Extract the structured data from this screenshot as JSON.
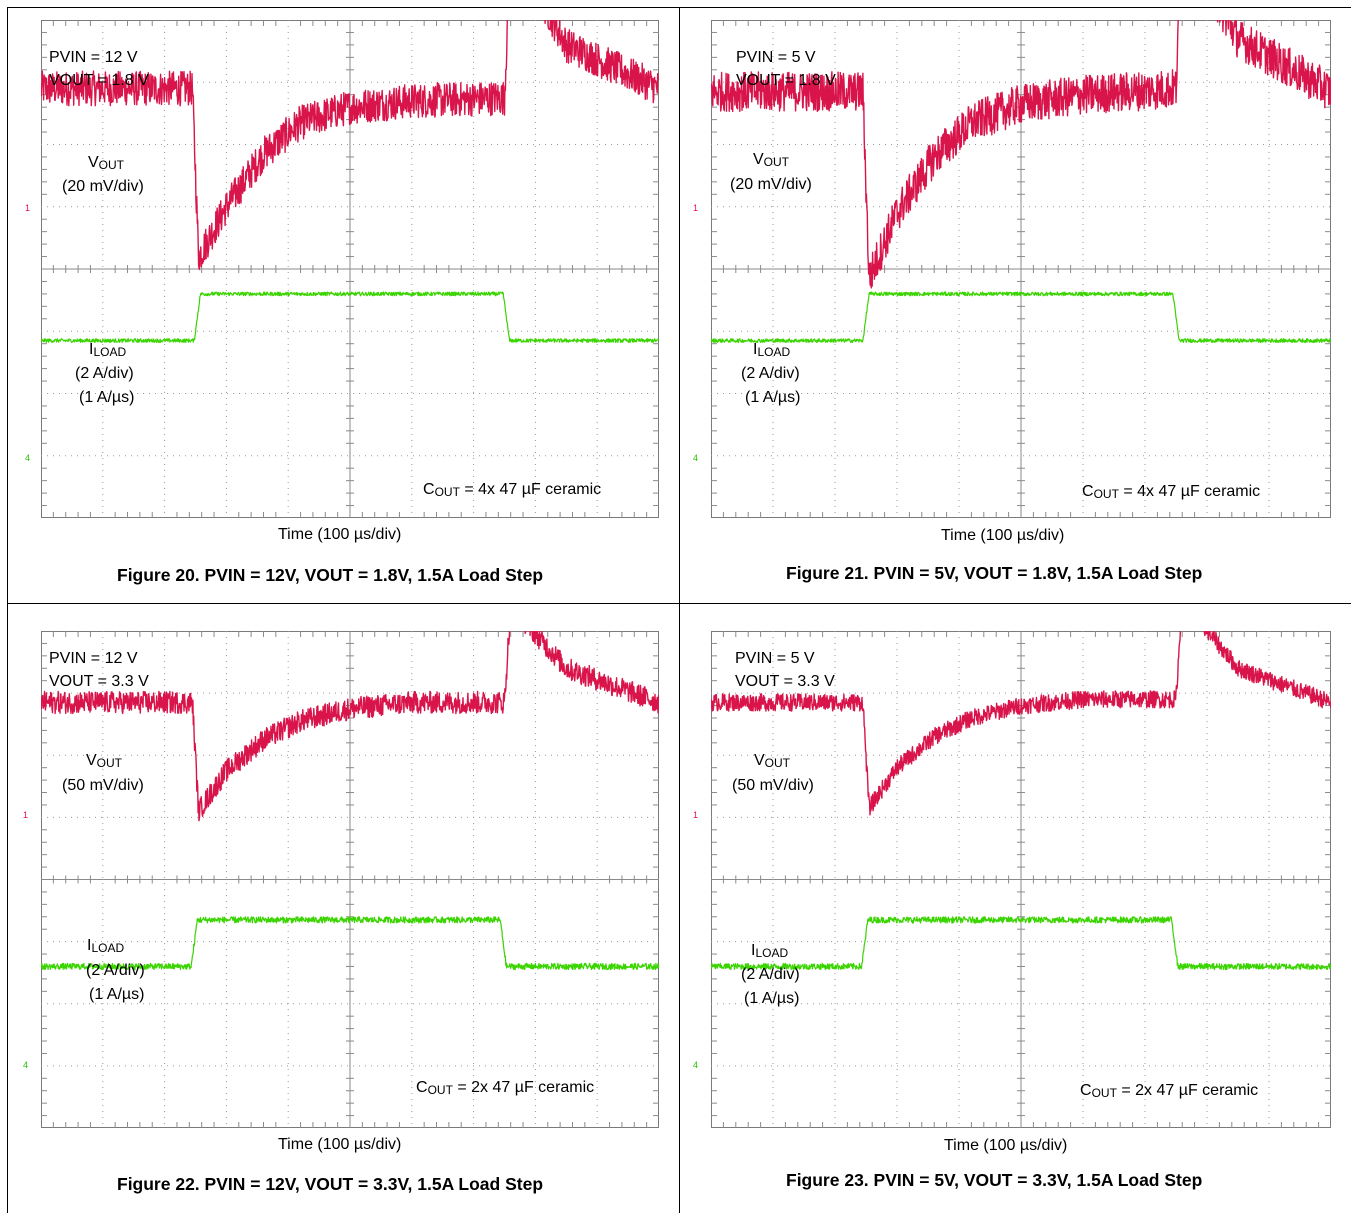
{
  "chart_data": [
    {
      "type": "line",
      "title": "Figure 20. PVIN = 12V, VOUT = 1.8V, 1.5A Load Step",
      "conditions": [
        "PVIN = 12 V",
        "VOUT = 1.8 V"
      ],
      "xlabel": "Time (100 µs/div)",
      "divisions": {
        "x": 10,
        "y": 8
      },
      "annotation": {
        "pre": "C",
        "sub": "OUT",
        "post": " = 4x 47 µF ceramic"
      },
      "channel_markers": [
        "1",
        "4"
      ],
      "series": [
        {
          "name_main": "V",
          "name_sub": "OUT",
          "scale": "(20 mV/div)",
          "color": "#d9144a",
          "x_div": [
            0,
            2.45,
            2.55,
            3.0,
            3.6,
            4.2,
            5.0,
            6.0,
            7.5,
            7.6,
            8.5,
            10.0
          ],
          "y_div": [
            6.9,
            6.9,
            4.2,
            5.0,
            5.85,
            6.35,
            6.6,
            6.7,
            6.75,
            9.2,
            7.6,
            6.9
          ],
          "noise_div": 0.28
        },
        {
          "name_main": "I",
          "name_sub": "LOAD",
          "scale": "(2 A/div)",
          "scale2": "(1 A/µs)",
          "color": "#3ad400",
          "x_div": [
            0,
            2.48,
            2.58,
            7.48,
            7.58,
            10.0
          ],
          "y_div": [
            2.85,
            2.85,
            3.6,
            3.6,
            2.85,
            2.85
          ],
          "noise_div": 0.03
        }
      ]
    },
    {
      "type": "line",
      "title": "Figure 21. PVIN = 5V, VOUT = 1.8V, 1.5A Load Step",
      "conditions": [
        "PVIN = 5 V",
        "VOUT = 1.8 V"
      ],
      "xlabel": "Time (100 µs/div)",
      "divisions": {
        "x": 10,
        "y": 8
      },
      "annotation": {
        "pre": "C",
        "sub": "OUT",
        "post": " = 4x 47 µF ceramic"
      },
      "channel_markers": [
        "1",
        "4"
      ],
      "series": [
        {
          "name_main": "V",
          "name_sub": "OUT",
          "scale": "(20 mV/div)",
          "color": "#d9144a",
          "x_div": [
            0,
            2.45,
            2.55,
            3.0,
            3.6,
            4.2,
            5.0,
            6.0,
            7.5,
            7.6,
            8.5,
            10.0
          ],
          "y_div": [
            6.85,
            6.85,
            3.85,
            4.9,
            5.8,
            6.35,
            6.65,
            6.8,
            6.9,
            9.25,
            7.7,
            6.85
          ],
          "noise_div": 0.32
        },
        {
          "name_main": "I",
          "name_sub": "LOAD",
          "scale": "(2 A/div)",
          "scale2": "(1 A/µs)",
          "color": "#3ad400",
          "x_div": [
            0,
            2.45,
            2.55,
            7.45,
            7.55,
            10.0
          ],
          "y_div": [
            2.85,
            2.85,
            3.6,
            3.6,
            2.85,
            2.85
          ],
          "noise_div": 0.03
        }
      ]
    },
    {
      "type": "line",
      "title": "Figure 22. PVIN = 12V, VOUT = 3.3V, 1.5A Load Step",
      "conditions": [
        "PVIN = 12 V",
        "VOUT = 3.3 V"
      ],
      "xlabel": "Time (100 µs/div)",
      "divisions": {
        "x": 10,
        "y": 8
      },
      "annotation": {
        "pre": "C",
        "sub": "OUT",
        "post": " = 2x 47 µF ceramic"
      },
      "channel_markers": [
        "1",
        "4"
      ],
      "series": [
        {
          "name_main": "V",
          "name_sub": "OUT",
          "scale": "(50 mV/div)",
          "color": "#d9144a",
          "x_div": [
            0,
            2.45,
            2.55,
            3.0,
            3.6,
            4.2,
            5.0,
            6.0,
            7.5,
            7.6,
            8.5,
            10.0
          ],
          "y_div": [
            6.85,
            6.85,
            5.1,
            5.75,
            6.25,
            6.55,
            6.75,
            6.85,
            6.85,
            8.4,
            7.4,
            6.85
          ],
          "noise_div": 0.18
        },
        {
          "name_main": "I",
          "name_sub": "LOAD",
          "scale": "(2 A/div)",
          "scale2": "(1 A/µs)",
          "color": "#3ad400",
          "x_div": [
            0,
            2.43,
            2.53,
            7.43,
            7.53,
            10.0
          ],
          "y_div": [
            2.6,
            2.6,
            3.35,
            3.35,
            2.6,
            2.6
          ],
          "noise_div": 0.05
        }
      ]
    },
    {
      "type": "line",
      "title": "Figure 23. PVIN = 5V, VOUT = 3.3V, 1.5A Load Step",
      "conditions": [
        "PVIN = 5 V",
        "VOUT = 3.3 V"
      ],
      "xlabel": "Time (100 µs/div)",
      "divisions": {
        "x": 10,
        "y": 8
      },
      "annotation": {
        "pre": "C",
        "sub": "OUT",
        "post": " = 2x 47 µF ceramic"
      },
      "channel_markers": [
        "1",
        "4"
      ],
      "series": [
        {
          "name_main": "V",
          "name_sub": "OUT",
          "scale": "(50 mV/div)",
          "color": "#d9144a",
          "x_div": [
            0,
            2.45,
            2.55,
            3.0,
            3.6,
            4.2,
            5.0,
            6.0,
            7.5,
            7.6,
            8.5,
            10.0
          ],
          "y_div": [
            6.85,
            6.85,
            5.15,
            5.8,
            6.3,
            6.6,
            6.8,
            6.9,
            6.9,
            8.5,
            7.4,
            6.85
          ],
          "noise_div": 0.14
        },
        {
          "name_main": "I",
          "name_sub": "LOAD",
          "scale": "(2 A/div)",
          "scale2": "(1 A/µs)",
          "color": "#3ad400",
          "x_div": [
            0,
            2.43,
            2.53,
            7.43,
            7.53,
            10.0
          ],
          "y_div": [
            2.6,
            2.6,
            3.35,
            3.35,
            2.6,
            2.6
          ],
          "noise_div": 0.05
        }
      ]
    }
  ]
}
